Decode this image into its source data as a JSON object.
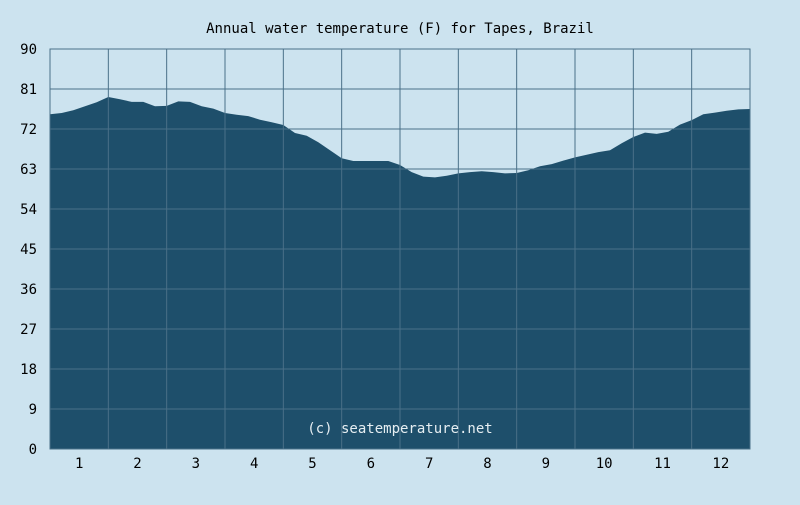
{
  "chart_data": {
    "type": "area",
    "title": "Annual water temperature (F) for Tapes, Brazil",
    "xlabel": "",
    "ylabel": "",
    "xlim": [
      0.5,
      12.5
    ],
    "ylim": [
      0,
      90
    ],
    "grid": true,
    "legend": "none",
    "yticks": [
      "0",
      "9",
      "18",
      "27",
      "36",
      "45",
      "54",
      "63",
      "72",
      "81",
      "90"
    ],
    "xticks": [
      "1",
      "2",
      "3",
      "4",
      "5",
      "6",
      "7",
      "8",
      "9",
      "10",
      "11",
      "12"
    ],
    "watermark": "(c) seatemperature.net",
    "colors": {
      "fill": "#1e4f6b",
      "background": "#cce3ef",
      "grid": "#4a7088"
    },
    "x": [
      0.5,
      0.7,
      0.9,
      1.1,
      1.3,
      1.5,
      1.7,
      1.9,
      2.1,
      2.3,
      2.5,
      2.7,
      2.9,
      3.1,
      3.3,
      3.5,
      3.7,
      3.9,
      4.1,
      4.3,
      4.5,
      4.7,
      4.9,
      5.1,
      5.3,
      5.5,
      5.7,
      5.9,
      6.1,
      6.3,
      6.5,
      6.7,
      6.9,
      7.1,
      7.3,
      7.5,
      7.7,
      7.9,
      8.1,
      8.3,
      8.5,
      8.7,
      8.9,
      9.1,
      9.3,
      9.5,
      9.7,
      9.9,
      10.1,
      10.3,
      10.5,
      10.7,
      10.9,
      11.1,
      11.3,
      11.5,
      11.7,
      11.9,
      12.1,
      12.3,
      12.5
    ],
    "values": [
      75.3,
      75.6,
      76.2,
      77.1,
      78.0,
      79.2,
      78.7,
      78.1,
      78.1,
      77.1,
      77.2,
      78.2,
      78.1,
      77.1,
      76.6,
      75.6,
      75.2,
      74.9,
      74.1,
      73.5,
      72.9,
      71.1,
      70.5,
      69.0,
      67.2,
      65.4,
      64.8,
      64.8,
      64.8,
      64.8,
      63.9,
      62.3,
      61.3,
      61.1,
      61.5,
      62.0,
      62.3,
      62.5,
      62.3,
      62.0,
      62.1,
      62.7,
      63.6,
      64.1,
      64.9,
      65.6,
      66.2,
      66.8,
      67.2,
      68.8,
      70.2,
      71.2,
      70.9,
      71.4,
      73.0,
      74.0,
      75.3,
      75.7,
      76.1,
      76.4,
      76.5
    ]
  }
}
